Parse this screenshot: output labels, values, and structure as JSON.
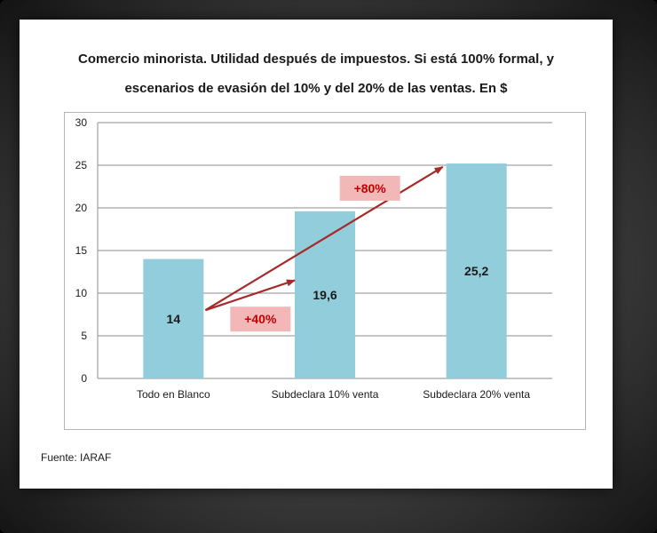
{
  "title_line1": "Comercio minorista. Utilidad después de impuestos. Si está 100% formal, y",
  "title_line2": "escenarios de evasión del 10% y del 20% de las ventas. En $",
  "source": "Fuente: IARAF",
  "colors": {
    "bar": "#92cddc",
    "arrow": "#a52a2a",
    "callout_bg": "#f2b8b8",
    "callout_text": "#c00000"
  },
  "chart_data": {
    "type": "bar",
    "categories": [
      "Todo en Blanco",
      "Subdeclara 10% venta",
      "Subdeclara 20% venta"
    ],
    "values": [
      14,
      19.6,
      25.2
    ],
    "value_labels": [
      "14",
      "19,6",
      "25,2"
    ],
    "ylim": [
      0,
      30
    ],
    "yticks": [
      0,
      5,
      10,
      15,
      20,
      25,
      30
    ],
    "grid": true,
    "legend": "none",
    "annotations": [
      {
        "label": "+40%",
        "from_category": 0,
        "to_category": 1,
        "from_value": 8,
        "to_value": 11.5
      },
      {
        "label": "+80%",
        "from_category": 0,
        "to_category": 2,
        "from_value": 8,
        "to_value": 24.8
      }
    ]
  }
}
